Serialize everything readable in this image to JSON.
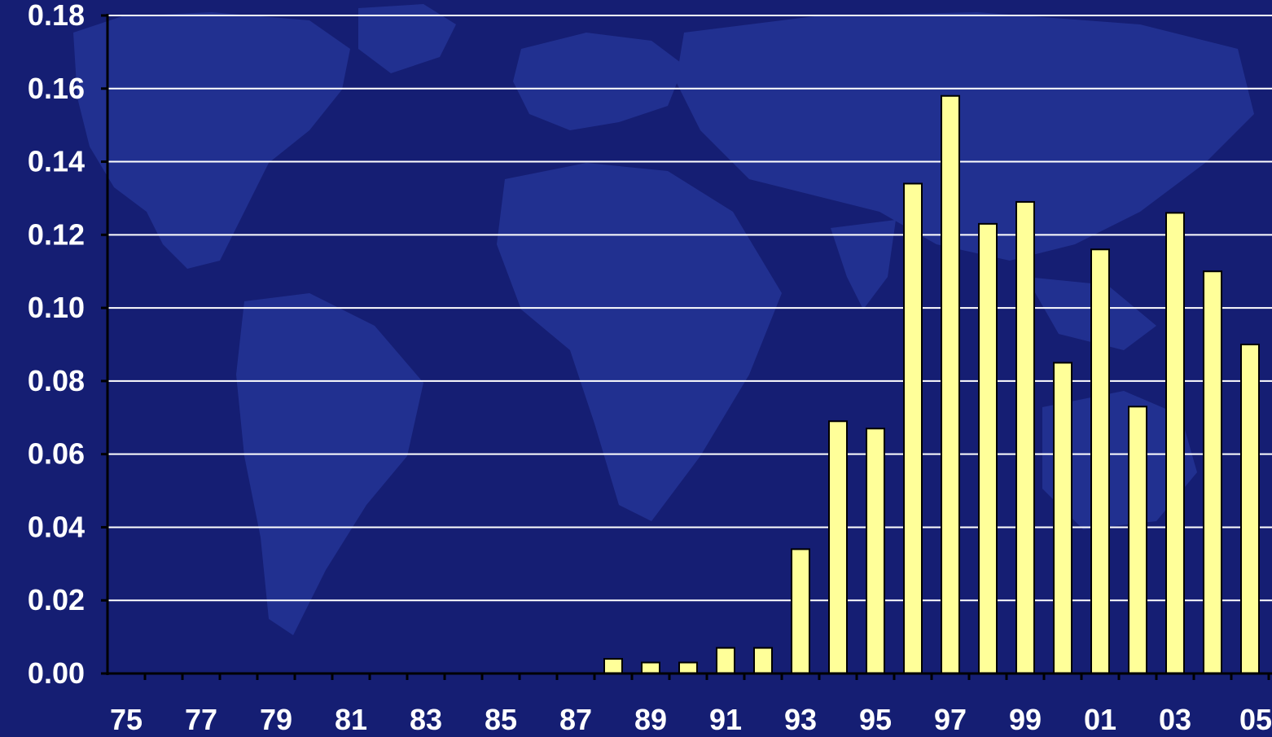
{
  "chart_data": {
    "type": "bar",
    "title": "",
    "xlabel": "",
    "ylabel": "",
    "categories": [
      "75",
      "76",
      "77",
      "78",
      "79",
      "80",
      "81",
      "82",
      "83",
      "84",
      "85",
      "86",
      "87",
      "88",
      "89",
      "90",
      "91",
      "92",
      "93",
      "94",
      "95",
      "96",
      "97",
      "98",
      "99",
      "00",
      "01",
      "02",
      "03",
      "04",
      "05"
    ],
    "x_tick_labels": [
      "75",
      "77",
      "79",
      "81",
      "83",
      "85",
      "87",
      "89",
      "91",
      "93",
      "95",
      "97",
      "99",
      "01",
      "03",
      "05"
    ],
    "values": [
      0,
      0,
      0,
      0,
      0,
      0,
      0,
      0,
      0,
      0,
      0,
      0,
      0,
      0.004,
      0.003,
      0.003,
      0.007,
      0.007,
      0.034,
      0.069,
      0.067,
      0.134,
      0.158,
      0.123,
      0.129,
      0.085,
      0.116,
      0.073,
      0.126,
      0.11,
      0.09
    ],
    "y_ticks": [
      "0.00",
      "0.02",
      "0.04",
      "0.06",
      "0.08",
      "0.10",
      "0.12",
      "0.14",
      "0.16",
      "0.18"
    ],
    "ylim": [
      0,
      0.18
    ],
    "grid": "horizontal",
    "legend": "none"
  },
  "colors": {
    "background": "#151e73",
    "map": "#26379a",
    "bar_fill": "#ffff99",
    "bar_stroke": "#000000",
    "grid": "#ffffff",
    "axis": "#000000",
    "text": "#ffffff"
  }
}
